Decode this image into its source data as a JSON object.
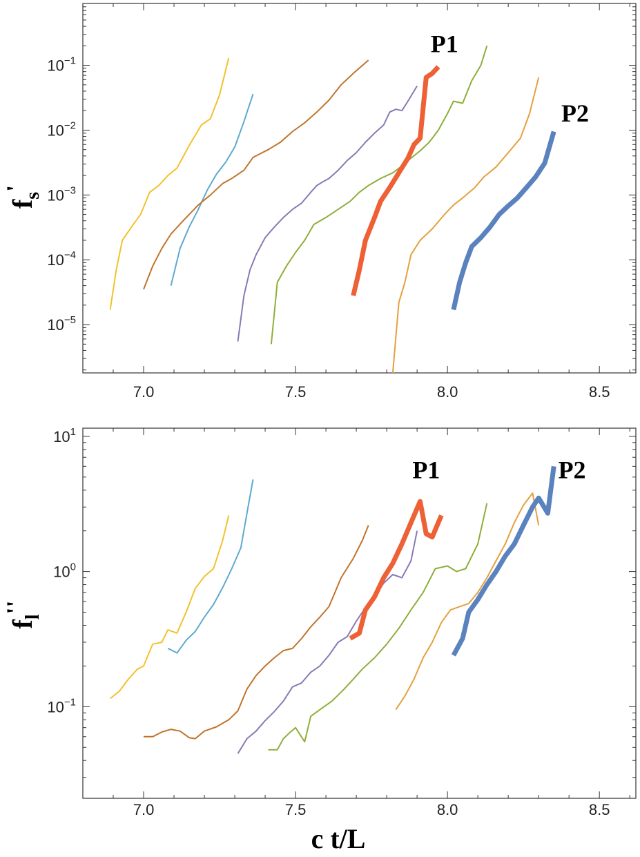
{
  "chart_data": [
    {
      "type": "line",
      "yscale": "log",
      "ylabel_main": "f",
      "ylabel_sub": "s",
      "ylabel_prime": "'",
      "xlabel": "",
      "xlim": [
        6.8,
        8.62
      ],
      "ylim": [
        1.8e-06,
        0.9
      ],
      "xticks": [
        {
          "value": 7.0,
          "label": "7.0"
        },
        {
          "value": 7.5,
          "label": "7.5"
        },
        {
          "value": 8.0,
          "label": "8.0"
        },
        {
          "value": 8.5,
          "label": "8.5"
        }
      ],
      "yticks": [
        {
          "exp": -5,
          "base": "10",
          "sup": "−5"
        },
        {
          "exp": -4,
          "base": "10",
          "sup": "−4"
        },
        {
          "exp": -3,
          "base": "10",
          "sup": "−3"
        },
        {
          "exp": -2,
          "base": "10",
          "sup": "−2"
        },
        {
          "exp": -1,
          "base": "10",
          "sup": "−1"
        }
      ],
      "annotations": [
        {
          "text": "P1",
          "x": 7.99,
          "y": 0.16
        },
        {
          "text": "P2",
          "x": 8.42,
          "y": 0.0135
        }
      ],
      "series": [
        {
          "name": "yellow",
          "color": "#f2c12e",
          "width": 2,
          "x": [
            6.89,
            6.91,
            6.93,
            6.96,
            6.99,
            7.02,
            7.05,
            7.08,
            7.11,
            7.15,
            7.19,
            7.22,
            7.25,
            7.28
          ],
          "y": [
            1.7e-05,
            7e-05,
            0.0002,
            0.00032,
            0.0005,
            0.0011,
            0.0014,
            0.002,
            0.0026,
            0.0058,
            0.012,
            0.015,
            0.035,
            0.13
          ]
        },
        {
          "name": "light-blue",
          "color": "#5ea8d0",
          "width": 2,
          "x": [
            7.09,
            7.12,
            7.15,
            7.18,
            7.21,
            7.24,
            7.27,
            7.3,
            7.33,
            7.36
          ],
          "y": [
            4e-05,
            0.00015,
            0.00032,
            0.0006,
            0.0012,
            0.0021,
            0.0032,
            0.0055,
            0.0135,
            0.036
          ]
        },
        {
          "name": "brown",
          "color": "#c0742a",
          "width": 2,
          "x": [
            7.0,
            7.03,
            7.06,
            7.09,
            7.13,
            7.18,
            7.22,
            7.26,
            7.29,
            7.33,
            7.36,
            7.41,
            7.45,
            7.49,
            7.53,
            7.57,
            7.61,
            7.65,
            7.69,
            7.74
          ],
          "y": [
            3.5e-05,
            8e-05,
            0.00015,
            0.00025,
            0.0004,
            0.0007,
            0.001,
            0.0015,
            0.0018,
            0.0024,
            0.0038,
            0.005,
            0.0065,
            0.0095,
            0.013,
            0.019,
            0.029,
            0.05,
            0.075,
            0.12
          ]
        },
        {
          "name": "purple",
          "color": "#8a78b4",
          "width": 2,
          "x": [
            7.31,
            7.33,
            7.35,
            7.37,
            7.4,
            7.43,
            7.46,
            7.49,
            7.52,
            7.55,
            7.57,
            7.59,
            7.61,
            7.64,
            7.67,
            7.7,
            7.73,
            7.76,
            7.79,
            7.81,
            7.83,
            7.85,
            7.87,
            7.9
          ],
          "y": [
            5.5e-06,
            2.8e-05,
            7e-05,
            0.00012,
            0.00022,
            0.00032,
            0.00045,
            0.0006,
            0.00075,
            0.0011,
            0.0014,
            0.0016,
            0.0018,
            0.0024,
            0.0034,
            0.0045,
            0.0065,
            0.009,
            0.012,
            0.019,
            0.021,
            0.02,
            0.028,
            0.048
          ]
        },
        {
          "name": "olive-green",
          "color": "#8dae3a",
          "width": 2,
          "x": [
            7.42,
            7.44,
            7.47,
            7.5,
            7.53,
            7.56,
            7.6,
            7.64,
            7.68,
            7.71,
            7.74,
            7.78,
            7.82,
            7.85,
            7.88,
            7.91,
            7.94,
            7.97,
            8.0,
            8.02,
            8.05,
            8.08,
            8.11,
            8.13
          ],
          "y": [
            5e-06,
            4.5e-05,
            8e-05,
            0.00013,
            0.0002,
            0.00035,
            0.00045,
            0.0006,
            0.0008,
            0.0011,
            0.0014,
            0.0018,
            0.0022,
            0.0028,
            0.0037,
            0.0048,
            0.0065,
            0.01,
            0.018,
            0.028,
            0.026,
            0.058,
            0.1,
            0.2
          ]
        },
        {
          "name": "orange",
          "color": "#e5a03c",
          "width": 2,
          "x": [
            7.82,
            7.84,
            7.86,
            7.88,
            7.91,
            7.95,
            7.99,
            8.02,
            8.05,
            8.09,
            8.12,
            8.16,
            8.2,
            8.24,
            8.27,
            8.3
          ],
          "y": [
            1.8e-06,
            2.2e-05,
            4.5e-05,
            0.00012,
            0.0002,
            0.0003,
            0.0005,
            0.0007,
            0.0009,
            0.0013,
            0.0019,
            0.0027,
            0.0045,
            0.0075,
            0.018,
            0.065
          ]
        },
        {
          "name": "P1",
          "color": "#ee6035",
          "width": 7,
          "x": [
            7.69,
            7.71,
            7.73,
            7.76,
            7.78,
            7.81,
            7.84,
            7.87,
            7.89,
            7.91,
            7.93,
            7.95,
            7.97
          ],
          "y": [
            2.8e-05,
            7e-05,
            0.0002,
            0.00045,
            0.0008,
            0.0013,
            0.0022,
            0.0037,
            0.006,
            0.0075,
            0.065,
            0.075,
            0.095
          ]
        },
        {
          "name": "P2",
          "color": "#5a82be",
          "width": 7,
          "x": [
            8.02,
            8.04,
            8.06,
            8.08,
            8.11,
            8.14,
            8.17,
            8.2,
            8.23,
            8.26,
            8.29,
            8.32,
            8.35
          ],
          "y": [
            1.7e-05,
            4.5e-05,
            9e-05,
            0.00016,
            0.00022,
            0.00032,
            0.0005,
            0.00068,
            0.0009,
            0.0013,
            0.0019,
            0.0031,
            0.0095
          ]
        }
      ]
    },
    {
      "type": "line",
      "yscale": "log",
      "ylabel_main": "f",
      "ylabel_sub": "l",
      "ylabel_prime": "''",
      "xlabel": "c t/L",
      "xlim": [
        6.8,
        8.62
      ],
      "ylim": [
        0.021,
        11.5
      ],
      "xticks": [
        {
          "value": 7.0,
          "label": "7.0"
        },
        {
          "value": 7.5,
          "label": "7.5"
        },
        {
          "value": 8.0,
          "label": "8.0"
        },
        {
          "value": 8.5,
          "label": "8.5"
        }
      ],
      "yticks": [
        {
          "exp": -1,
          "base": "10",
          "sup": "−1"
        },
        {
          "exp": 0,
          "base": "10",
          "sup": "0"
        },
        {
          "exp": 1,
          "base": "10",
          "sup": "1"
        }
      ],
      "annotations": [
        {
          "text": "P1",
          "x": 7.93,
          "y": 4.9
        },
        {
          "text": "P2",
          "x": 8.41,
          "y": 4.9
        }
      ],
      "series": [
        {
          "name": "yellow",
          "color": "#f2c12e",
          "width": 2,
          "x": [
            6.89,
            6.92,
            6.95,
            6.98,
            7.0,
            7.03,
            7.06,
            7.08,
            7.11,
            7.14,
            7.17,
            7.2,
            7.23,
            7.26,
            7.28
          ],
          "y": [
            0.115,
            0.13,
            0.16,
            0.19,
            0.2,
            0.29,
            0.3,
            0.37,
            0.35,
            0.5,
            0.75,
            0.92,
            1.05,
            1.7,
            2.6
          ]
        },
        {
          "name": "light-blue",
          "color": "#5ea8d0",
          "width": 2,
          "x": [
            7.08,
            7.11,
            7.14,
            7.17,
            7.2,
            7.23,
            7.26,
            7.29,
            7.32,
            7.34,
            7.36
          ],
          "y": [
            0.27,
            0.25,
            0.31,
            0.36,
            0.46,
            0.57,
            0.76,
            1.05,
            1.5,
            2.7,
            4.8
          ]
        },
        {
          "name": "brown",
          "color": "#c0742a",
          "width": 2,
          "x": [
            7.0,
            7.03,
            7.06,
            7.09,
            7.12,
            7.15,
            7.17,
            7.2,
            7.24,
            7.28,
            7.31,
            7.34,
            7.37,
            7.4,
            7.43,
            7.46,
            7.49,
            7.52,
            7.55,
            7.58,
            7.61,
            7.65,
            7.69,
            7.72,
            7.74
          ],
          "y": [
            0.06,
            0.06,
            0.065,
            0.068,
            0.066,
            0.059,
            0.058,
            0.066,
            0.071,
            0.08,
            0.093,
            0.135,
            0.17,
            0.2,
            0.23,
            0.26,
            0.27,
            0.32,
            0.39,
            0.46,
            0.55,
            0.9,
            1.25,
            1.7,
            2.2
          ]
        },
        {
          "name": "purple",
          "color": "#8a78b4",
          "width": 2,
          "x": [
            7.31,
            7.34,
            7.37,
            7.4,
            7.43,
            7.46,
            7.49,
            7.52,
            7.55,
            7.58,
            7.61,
            7.64,
            7.67,
            7.7,
            7.73,
            7.76,
            7.79,
            7.82,
            7.85,
            7.88,
            7.9
          ],
          "y": [
            0.045,
            0.058,
            0.066,
            0.079,
            0.092,
            0.11,
            0.14,
            0.15,
            0.18,
            0.2,
            0.24,
            0.3,
            0.33,
            0.43,
            0.54,
            0.65,
            0.82,
            0.95,
            0.9,
            1.2,
            2.0
          ]
        },
        {
          "name": "olive-green",
          "color": "#8dae3a",
          "width": 2,
          "x": [
            7.41,
            7.44,
            7.46,
            7.48,
            7.5,
            7.53,
            7.55,
            7.58,
            7.62,
            7.66,
            7.69,
            7.72,
            7.76,
            7.8,
            7.84,
            7.88,
            7.92,
            7.96,
            8.0,
            8.03,
            8.06,
            8.1,
            8.13
          ],
          "y": [
            0.048,
            0.048,
            0.058,
            0.064,
            0.07,
            0.055,
            0.085,
            0.095,
            0.11,
            0.135,
            0.16,
            0.19,
            0.23,
            0.29,
            0.38,
            0.52,
            0.7,
            1.05,
            1.1,
            1.0,
            1.05,
            1.6,
            3.2
          ]
        },
        {
          "name": "orange",
          "color": "#e5a03c",
          "width": 2,
          "x": [
            7.83,
            7.86,
            7.89,
            7.92,
            7.95,
            7.98,
            8.01,
            8.04,
            8.07,
            8.1,
            8.13,
            8.16,
            8.19,
            8.22,
            8.25,
            8.28,
            8.3
          ],
          "y": [
            0.095,
            0.12,
            0.16,
            0.23,
            0.3,
            0.42,
            0.52,
            0.55,
            0.58,
            0.7,
            0.9,
            1.2,
            1.6,
            2.3,
            3.1,
            3.8,
            2.2
          ]
        },
        {
          "name": "P1",
          "color": "#ee6035",
          "width": 7,
          "x": [
            7.68,
            7.71,
            7.73,
            7.76,
            7.79,
            7.82,
            7.85,
            7.88,
            7.91,
            7.93,
            7.95,
            7.98
          ],
          "y": [
            0.32,
            0.35,
            0.52,
            0.65,
            0.9,
            1.15,
            1.6,
            2.3,
            3.3,
            1.9,
            1.8,
            2.6
          ]
        },
        {
          "name": "P2",
          "color": "#5a82be",
          "width": 7,
          "x": [
            8.02,
            8.05,
            8.07,
            8.1,
            8.13,
            8.16,
            8.19,
            8.22,
            8.25,
            8.28,
            8.3,
            8.33,
            8.35
          ],
          "y": [
            0.24,
            0.32,
            0.5,
            0.62,
            0.8,
            1.0,
            1.3,
            1.6,
            2.2,
            3.0,
            3.5,
            2.7,
            6.0
          ]
        }
      ]
    }
  ]
}
